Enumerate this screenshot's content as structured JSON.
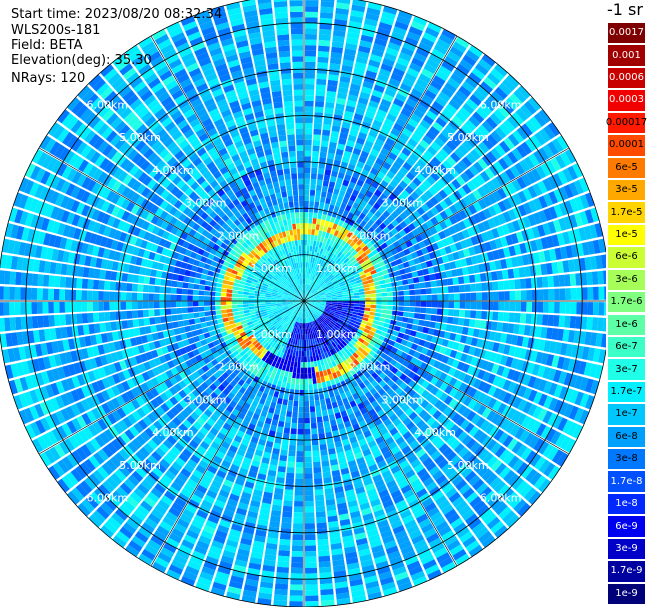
{
  "header": {
    "start_time": "Start time: 2023/08/20 08:32:34",
    "instrument": "WLS200s-181",
    "field": "Field: BETA",
    "elevation": "Elevation(deg): 35.30",
    "nrays": "NRays: 120"
  },
  "colorbar": {
    "unit_label": "-1 sr",
    "entries": [
      {
        "label": "0.0017",
        "color": "#7f0000",
        "text_color": "#ffffff"
      },
      {
        "label": "0.001",
        "color": "#a00000",
        "text_color": "#ffffff"
      },
      {
        "label": "0.0006",
        "color": "#c80000",
        "text_color": "#ffffff"
      },
      {
        "label": "0.0003",
        "color": "#f00000",
        "text_color": "#ffffff"
      },
      {
        "label": "0.00017",
        "color": "#ff1a00",
        "text_color": "#000000"
      },
      {
        "label": "0.0001",
        "color": "#ff4a00",
        "text_color": "#000000"
      },
      {
        "label": "6e-5",
        "color": "#ff7a00",
        "text_color": "#000000"
      },
      {
        "label": "3e-5",
        "color": "#ffa800",
        "text_color": "#000000"
      },
      {
        "label": "1.7e-5",
        "color": "#ffd400",
        "text_color": "#000000"
      },
      {
        "label": "1e-5",
        "color": "#ffff00",
        "text_color": "#000000"
      },
      {
        "label": "6e-6",
        "color": "#ccff33",
        "text_color": "#000000"
      },
      {
        "label": "3e-6",
        "color": "#a6ff59",
        "text_color": "#000000"
      },
      {
        "label": "1.7e-6",
        "color": "#80ff80",
        "text_color": "#000000"
      },
      {
        "label": "1e-6",
        "color": "#5cffa6",
        "text_color": "#000000"
      },
      {
        "label": "6e-7",
        "color": "#3cffc8",
        "text_color": "#000000"
      },
      {
        "label": "3e-7",
        "color": "#20ffe8",
        "text_color": "#000000"
      },
      {
        "label": "1.7e-7",
        "color": "#00f0ff",
        "text_color": "#000000"
      },
      {
        "label": "1e-7",
        "color": "#00c8ff",
        "text_color": "#000000"
      },
      {
        "label": "6e-8",
        "color": "#00a0ff",
        "text_color": "#000000"
      },
      {
        "label": "3e-8",
        "color": "#0078ff",
        "text_color": "#000000"
      },
      {
        "label": "1.7e-8",
        "color": "#0050ff",
        "text_color": "#ffffff"
      },
      {
        "label": "1e-8",
        "color": "#0028ff",
        "text_color": "#ffffff"
      },
      {
        "label": "6e-9",
        "color": "#0000f0",
        "text_color": "#ffffff"
      },
      {
        "label": "3e-9",
        "color": "#0000c8",
        "text_color": "#ffffff"
      },
      {
        "label": "1.7e-9",
        "color": "#0000a0",
        "text_color": "#ffffff"
      },
      {
        "label": "1e-9",
        "color": "#000078",
        "text_color": "#ffffff"
      }
    ]
  },
  "chart_data": {
    "type": "heatmap",
    "projection": "polar-ppi",
    "field": "BETA",
    "elevation_deg": 35.3,
    "nrays": 120,
    "range_rings_km": [
      1,
      2,
      3,
      4,
      5,
      6
    ],
    "ring_labels": [
      "1.00km",
      "2.00km",
      "3.00km",
      "4.00km",
      "5.00km",
      "6.00km"
    ],
    "max_range_km": 6.6,
    "grid": true,
    "colorbar_placement": "right",
    "regions": [
      {
        "range_km": [
          0.0,
          0.8
        ],
        "level": "1.7e-7",
        "note": "near-field core"
      },
      {
        "range_km": [
          0.6,
          1.5
        ],
        "level": "1e-8",
        "sector_deg": [
          90,
          200
        ],
        "note": "dark blue wedge east/south-east"
      },
      {
        "range_km": [
          1.3,
          1.9
        ],
        "level": "6e-5",
        "note": "aerosol ring, orange/yellow peaks"
      },
      {
        "range_km": [
          1.9,
          3.0
        ],
        "level": "6e-8",
        "note": "mixed blue beyond the ring"
      },
      {
        "range_km": [
          3.0,
          6.6
        ],
        "level": "6e-8",
        "note": "far field light/dark blue speckle"
      }
    ]
  }
}
